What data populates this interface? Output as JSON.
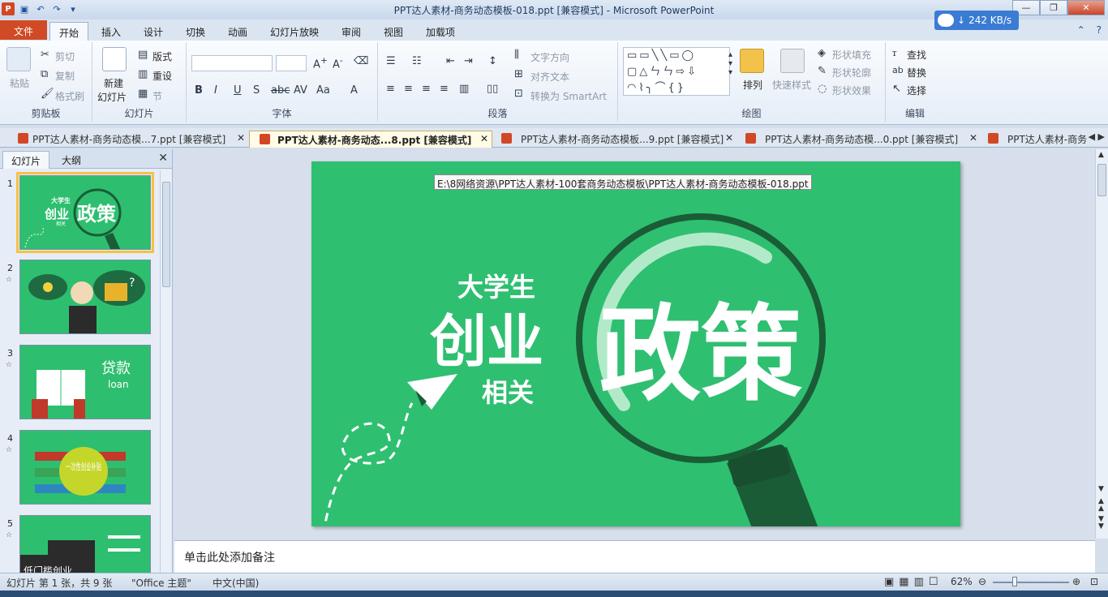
{
  "window": {
    "title": "PPT达人素材-商务动态模板-018.ppt [兼容模式]  -  Microsoft PowerPoint",
    "network_speed": "242 KB/s"
  },
  "ribbon_tabs": [
    "文件",
    "开始",
    "插入",
    "设计",
    "切换",
    "动画",
    "幻灯片放映",
    "审阅",
    "视图",
    "加载项"
  ],
  "ribbon": {
    "clipboard": {
      "paste": "粘贴",
      "cut": "剪切",
      "copy": "复制",
      "format_painter": "格式刷",
      "label": "剪贴板"
    },
    "slides": {
      "new_slide": "新建",
      "new_slide2": "幻灯片",
      "layout": "版式",
      "reset": "重设",
      "section": "节",
      "label": "幻灯片"
    },
    "font": {
      "label": "字体"
    },
    "paragraph": {
      "text_direction": "文字方向",
      "align_text": "对齐文本",
      "smartart": "转换为 SmartArt",
      "label": "段落"
    },
    "drawing": {
      "arrange": "排列",
      "quick_styles": "快速样式",
      "shape_fill": "形状填充",
      "shape_outline": "形状轮廓",
      "shape_effects": "形状效果",
      "label": "绘图"
    },
    "editing": {
      "find": "查找",
      "replace": "替换",
      "select": "选择",
      "label": "编辑"
    }
  },
  "doc_tabs": [
    "PPT达人素材-商务动态模...7.ppt [兼容模式]",
    "PPT达人素材-商务动态...8.ppt [兼容模式]",
    "PPT达人素材-商务动态模板...9.ppt [兼容模式]",
    "PPT达人素材-商务动态模...0.ppt [兼容模式]",
    "PPT达人素材-商务"
  ],
  "left_panel": {
    "tabs": [
      "幻灯片",
      "大纲"
    ],
    "slides": [
      {
        "num": "1",
        "texts": [
          "大学生",
          "创业",
          "相关",
          "政策"
        ]
      },
      {
        "num": "2",
        "texts": [
          "?"
        ]
      },
      {
        "num": "3",
        "texts": [
          "贷款",
          "loan"
        ]
      },
      {
        "num": "4",
        "texts": [
          "一次性创业补贴"
        ]
      },
      {
        "num": "5",
        "texts": [
          "低门槛创业"
        ]
      }
    ]
  },
  "slide": {
    "path_tooltip": "E:\\8网络资源\\PPT达人素材-100套商务动态模板\\PPT达人素材-商务动态模板-018.ppt",
    "line1": "大学生",
    "line2": "创业",
    "line3": "相关",
    "main_word": "政策",
    "bg_color": "#2fbf71",
    "dark_green": "#1a5c36"
  },
  "notes_placeholder": "单击此处添加备注",
  "status": {
    "slide_info": "幻灯片 第 1 张，共 9 张",
    "theme": "\"Office 主题\"",
    "language": "中文(中国)",
    "zoom": "62%"
  }
}
